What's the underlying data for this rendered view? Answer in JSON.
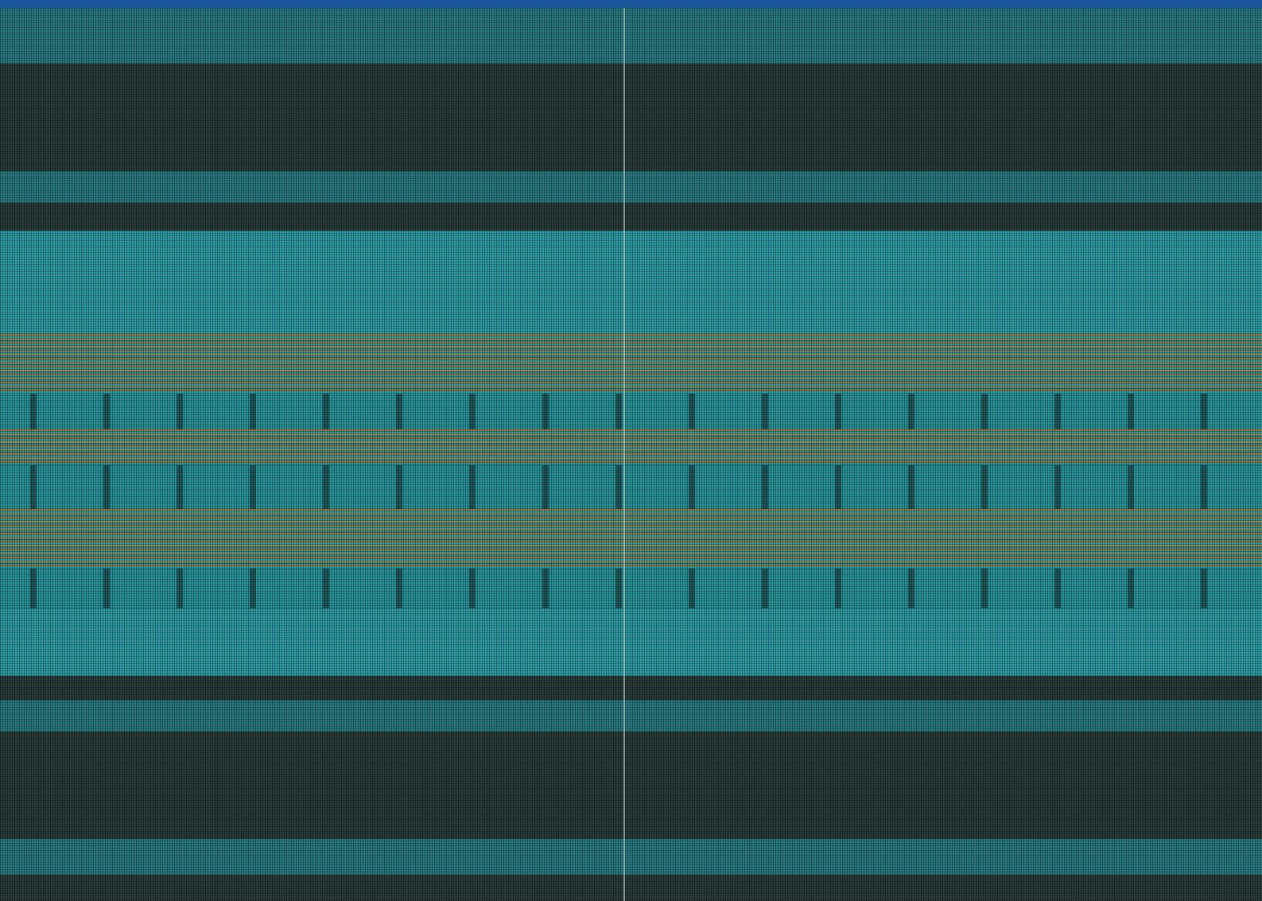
{
  "window": {
    "title_bar_color": "#1a559a"
  },
  "display": {
    "state": "corrupted-pattern",
    "palette": {
      "dark": "#2b3e3a",
      "teal": "#2ea3ab",
      "bright_teal": "#37b8bf",
      "orange": "#b07a3a",
      "divider": "#d2e6e1"
    }
  }
}
